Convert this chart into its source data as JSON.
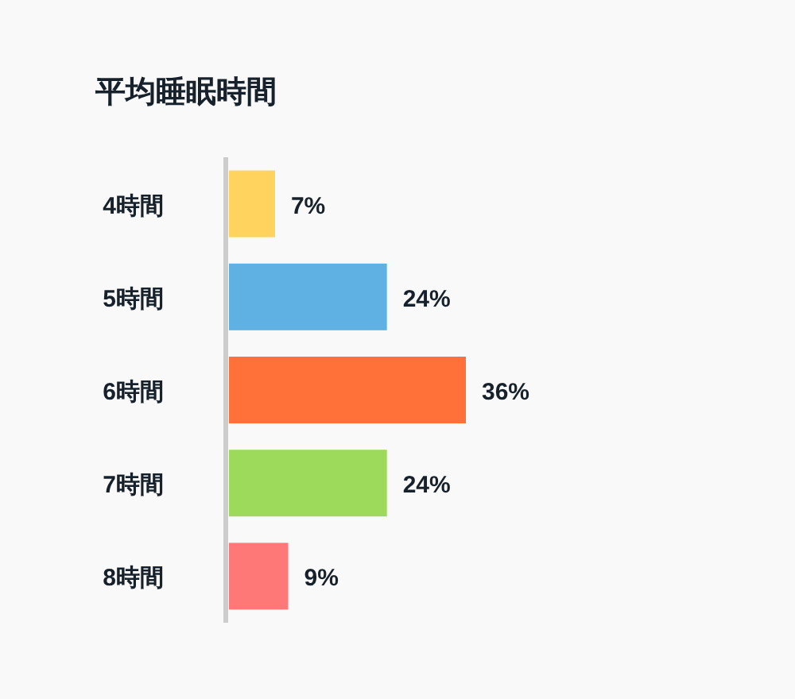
{
  "chart_data": {
    "type": "bar",
    "orientation": "horizontal",
    "title": "平均睡眠時間",
    "categories": [
      "4時間",
      "5時間",
      "6時間",
      "7時間",
      "8時間"
    ],
    "values": [
      7,
      24,
      36,
      24,
      9
    ],
    "colors": [
      "#ffd35e",
      "#5eb1e2",
      "#ff7138",
      "#9dd95a",
      "#ff7878"
    ],
    "value_labels": [
      "7%",
      "24%",
      "36%",
      "24%",
      "9%"
    ]
  }
}
